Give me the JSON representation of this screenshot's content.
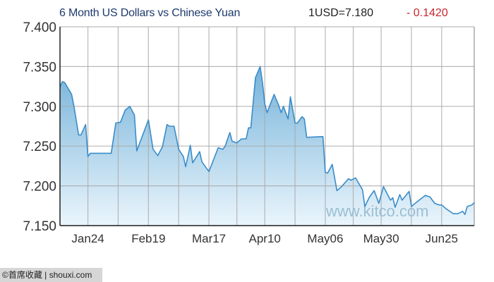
{
  "header": {
    "title": "6 Month US Dollars vs Chinese Yuan",
    "quote": "1USD=7.180",
    "change": "- 0.1420"
  },
  "watermark": "www.kitco.com",
  "footer": "©首席收藏 | shouxi.com",
  "colors": {
    "line": "#3a8cc8",
    "fill_top": "#76b3da",
    "fill_bottom": "#eaf5fc",
    "grid": "#a8a8a8",
    "change": "#c8282c"
  },
  "chart_data": {
    "type": "area",
    "title": "6 Month US Dollars vs Chinese Yuan",
    "xlabel": "",
    "ylabel": "",
    "ylim": [
      7.15,
      7.4
    ],
    "xlim": [
      "Jan 12",
      "Jul 09"
    ],
    "grid": true,
    "y_ticks": [
      "7.400",
      "7.350",
      "7.300",
      "7.250",
      "7.200",
      "7.150"
    ],
    "x_ticks": [
      "Jan24",
      "Feb19",
      "Mar17",
      "Apr10",
      "May06",
      "May30",
      "Jun25"
    ],
    "points": [
      [
        "Jan 12",
        7.324
      ],
      [
        "Jan 13",
        7.331
      ],
      [
        "Jan 14",
        7.33
      ],
      [
        "Jan 16",
        7.32
      ],
      [
        "Jan 17",
        7.315
      ],
      [
        "Jan 18",
        7.3
      ],
      [
        "Jan 20",
        7.264
      ],
      [
        "Jan 21",
        7.264
      ],
      [
        "Jan 23",
        7.277
      ],
      [
        "Jan 24",
        7.237
      ],
      [
        "Jan 25",
        7.241
      ],
      [
        "Feb 03",
        7.241
      ],
      [
        "Feb 05",
        7.279
      ],
      [
        "Feb 07",
        7.28
      ],
      [
        "Feb 09",
        7.295
      ],
      [
        "Feb 11",
        7.3
      ],
      [
        "Feb 13",
        7.289
      ],
      [
        "Feb 14",
        7.244
      ],
      [
        "Feb 19",
        7.283
      ],
      [
        "Feb 21",
        7.246
      ],
      [
        "Feb 23",
        7.238
      ],
      [
        "Feb 25",
        7.249
      ],
      [
        "Feb 27",
        7.277
      ],
      [
        "Feb 28",
        7.275
      ],
      [
        "Mar 02",
        7.275
      ],
      [
        "Mar 04",
        7.246
      ],
      [
        "Mar 06",
        7.237
      ],
      [
        "Mar 07",
        7.224
      ],
      [
        "Mar 09",
        7.251
      ],
      [
        "Mar 10",
        7.229
      ],
      [
        "Mar 13",
        7.243
      ],
      [
        "Mar 14",
        7.23
      ],
      [
        "Mar 17",
        7.218
      ],
      [
        "Mar 21",
        7.248
      ],
      [
        "Mar 23",
        7.246
      ],
      [
        "Mar 24",
        7.25
      ],
      [
        "Mar 26",
        7.267
      ],
      [
        "Mar 27",
        7.256
      ],
      [
        "Mar 29",
        7.254
      ],
      [
        "Mar 31",
        7.259
      ],
      [
        "Apr 02",
        7.259
      ],
      [
        "Apr 03",
        7.273
      ],
      [
        "Apr 04",
        7.273
      ],
      [
        "Apr 06",
        7.336
      ],
      [
        "Apr 08",
        7.35
      ],
      [
        "Apr 09",
        7.33
      ],
      [
        "Apr 10",
        7.303
      ],
      [
        "Apr 11",
        7.292
      ],
      [
        "Apr 14",
        7.315
      ],
      [
        "Apr 16",
        7.301
      ],
      [
        "Apr 17",
        7.292
      ],
      [
        "Apr 18",
        7.3
      ],
      [
        "Apr 20",
        7.284
      ],
      [
        "Apr 21",
        7.312
      ],
      [
        "Apr 23",
        7.279
      ],
      [
        "Apr 24",
        7.279
      ],
      [
        "Apr 26",
        7.287
      ],
      [
        "Apr 27",
        7.284
      ],
      [
        "Apr 28",
        7.261
      ],
      [
        "May 05",
        7.262
      ],
      [
        "May 06",
        7.217
      ],
      [
        "May 07",
        7.216
      ],
      [
        "May 09",
        7.227
      ],
      [
        "May 11",
        7.194
      ],
      [
        "May 13",
        7.199
      ],
      [
        "May 16",
        7.209
      ],
      [
        "May 17",
        7.207
      ],
      [
        "May 19",
        7.21
      ],
      [
        "May 22",
        7.195
      ],
      [
        "May 23",
        7.174
      ],
      [
        "May 25",
        7.186
      ],
      [
        "May 27",
        7.194
      ],
      [
        "May 29",
        7.178
      ],
      [
        "May 31",
        7.199
      ],
      [
        "Jun 03",
        7.182
      ],
      [
        "Jun 04",
        7.185
      ],
      [
        "Jun 05",
        7.173
      ],
      [
        "Jun 07",
        7.189
      ],
      [
        "Jun 08",
        7.182
      ],
      [
        "Jun 11",
        7.193
      ],
      [
        "Jun 12",
        7.174
      ],
      [
        "Jun 14",
        7.179
      ],
      [
        "Jun 18",
        7.188
      ],
      [
        "Jun 20",
        7.186
      ],
      [
        "Jun 22",
        7.178
      ],
      [
        "Jun 24",
        7.176
      ],
      [
        "Jun 25",
        7.176
      ],
      [
        "Jun 27",
        7.171
      ],
      [
        "Jun 30",
        7.165
      ],
      [
        "Jul 02",
        7.165
      ],
      [
        "Jul 04",
        7.168
      ],
      [
        "Jul 05",
        7.164
      ],
      [
        "Jul 06",
        7.174
      ],
      [
        "Jul 08",
        7.176
      ],
      [
        "Jul 09",
        7.179
      ]
    ]
  }
}
